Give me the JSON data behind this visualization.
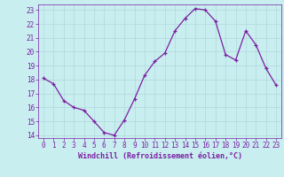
{
  "x": [
    0,
    1,
    2,
    3,
    4,
    5,
    6,
    7,
    8,
    9,
    10,
    11,
    12,
    13,
    14,
    15,
    16,
    17,
    18,
    19,
    20,
    21,
    22,
    23
  ],
  "y": [
    18.1,
    17.7,
    16.5,
    16.0,
    15.8,
    15.0,
    14.2,
    14.0,
    15.1,
    16.6,
    18.3,
    19.3,
    19.9,
    21.5,
    22.4,
    23.1,
    23.0,
    22.2,
    19.8,
    19.4,
    21.5,
    20.5,
    18.8,
    17.6
  ],
  "line_color": "#7b1fa2",
  "marker": "+",
  "marker_size": 3,
  "marker_lw": 0.9,
  "line_width": 0.9,
  "bg_color": "#c8eef0",
  "grid_color": "#b0d8da",
  "xlabel": "Windchill (Refroidissement éolien,°C)",
  "xlabel_color": "#7b1fa2",
  "tick_color": "#7b1fa2",
  "spine_color": "#7b1fa2",
  "ylim": [
    13.8,
    23.4
  ],
  "xlim": [
    -0.5,
    23.5
  ],
  "yticks": [
    14,
    15,
    16,
    17,
    18,
    19,
    20,
    21,
    22,
    23
  ],
  "xticks": [
    0,
    1,
    2,
    3,
    4,
    5,
    6,
    7,
    8,
    9,
    10,
    11,
    12,
    13,
    14,
    15,
    16,
    17,
    18,
    19,
    20,
    21,
    22,
    23
  ],
  "tick_fontsize": 5.5,
  "xlabel_fontsize": 6.0
}
